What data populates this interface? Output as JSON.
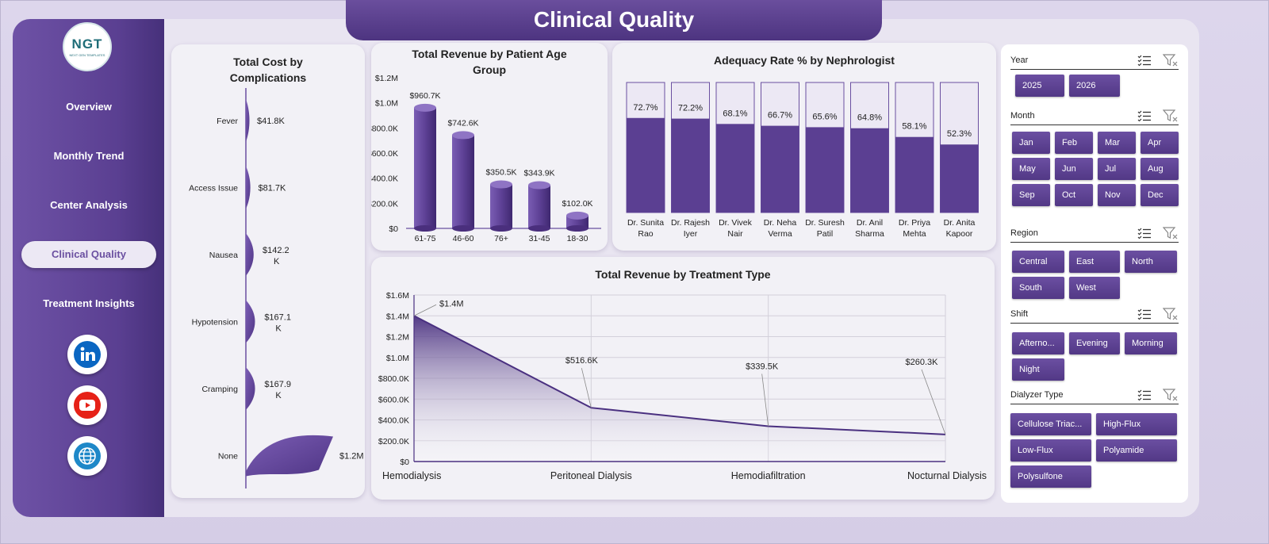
{
  "page": {
    "title": "Clinical Quality"
  },
  "logo": {
    "text": "NGT",
    "subtext": "NEXT GEN TEMPLATES"
  },
  "nav": {
    "items": [
      {
        "label": "Overview"
      },
      {
        "label": "Monthly Trend"
      },
      {
        "label": "Center Analysis"
      },
      {
        "label": "Clinical Quality",
        "active": true
      },
      {
        "label": "Treatment Insights"
      }
    ]
  },
  "social": [
    {
      "icon": "linkedin-icon",
      "color": "#0a66c2"
    },
    {
      "icon": "youtube-icon",
      "color": "#e62117"
    },
    {
      "icon": "globe-icon",
      "color": "#1e88c8"
    }
  ],
  "colors": {
    "accent": "#5b3f92",
    "accent_light": "#e6e1ef"
  },
  "chart_data": [
    {
      "id": "complications",
      "type": "bar",
      "title": "Total Cost by Complications",
      "categories": [
        "Fever",
        "Access Issue",
        "Nausea",
        "Hypotension",
        "Cramping",
        "None"
      ],
      "values": [
        41800,
        81700,
        142200,
        167100,
        167900,
        1200000
      ],
      "labels": [
        "$41.8K",
        "$81.7K",
        "$142.2 K",
        "$167.1 K",
        "$167.9 K",
        "$1.2M"
      ],
      "orientation": "horizontal"
    },
    {
      "id": "age",
      "type": "bar",
      "title": "Total Revenue by Patient Age Group",
      "categories": [
        "61-75",
        "46-60",
        "76+",
        "31-45",
        "18-30"
      ],
      "values": [
        960700,
        742600,
        350500,
        343900,
        102000
      ],
      "labels": [
        "$960.7K",
        "$742.6K",
        "$350.5K",
        "$343.9K",
        "$102.0K"
      ],
      "yticks": [
        "$0",
        "$200.0K",
        "$400.0K",
        "$600.0K",
        "$800.0K",
        "$1.0M",
        "$1.2M"
      ],
      "ylim": [
        0,
        1200000
      ]
    },
    {
      "id": "adequacy",
      "type": "bar",
      "title": "Adequacy Rate % by Nephrologist",
      "categories": [
        "Dr. Sunita Rao",
        "Dr. Rajesh Iyer",
        "Dr. Vivek Nair",
        "Dr. Neha Verma",
        "Dr. Suresh Patil",
        "Dr. Anil Sharma",
        "Dr. Priya Mehta",
        "Dr. Anita Kapoor"
      ],
      "values": [
        72.7,
        72.2,
        68.1,
        66.7,
        65.6,
        64.8,
        58.1,
        52.3
      ],
      "labels": [
        "72.7%",
        "72.2%",
        "68.1%",
        "66.7%",
        "65.6%",
        "64.8%",
        "58.1%",
        "52.3%"
      ],
      "ylim": [
        0,
        100
      ]
    },
    {
      "id": "treatment",
      "type": "area",
      "title": "Total Revenue by Treatment Type",
      "categories": [
        "Hemodialysis",
        "Peritoneal Dialysis",
        "Hemodiafiltration",
        "Nocturnal Dialysis"
      ],
      "values": [
        1400000,
        516600,
        339500,
        260300
      ],
      "labels": [
        "$1.4M",
        "$516.6K",
        "$339.5K",
        "$260.3K"
      ],
      "yticks": [
        "$0",
        "$200.0K",
        "$400.0K",
        "$600.0K",
        "$800.0K",
        "$1.0M",
        "$1.2M",
        "$1.4M",
        "$1.6M"
      ],
      "ylim": [
        0,
        1600000
      ],
      "grid": true
    }
  ],
  "slicers": [
    {
      "title": "Year",
      "options": [
        "2025",
        "2026"
      ]
    },
    {
      "title": "Month",
      "options": [
        "Jan",
        "Feb",
        "Mar",
        "Apr",
        "May",
        "Jun",
        "Jul",
        "Aug",
        "Sep",
        "Oct",
        "Nov",
        "Dec"
      ]
    },
    {
      "title": "Region",
      "options": [
        "Central",
        "East",
        "North",
        "South",
        "West"
      ]
    },
    {
      "title": "Shift",
      "options": [
        "Afterno...",
        "Evening",
        "Morning",
        "Night"
      ]
    },
    {
      "title": "Dialyzer Type",
      "options": [
        "Cellulose Triac...",
        "High-Flux",
        "Low-Flux",
        "Polyamide",
        "Polysulfone"
      ]
    }
  ]
}
